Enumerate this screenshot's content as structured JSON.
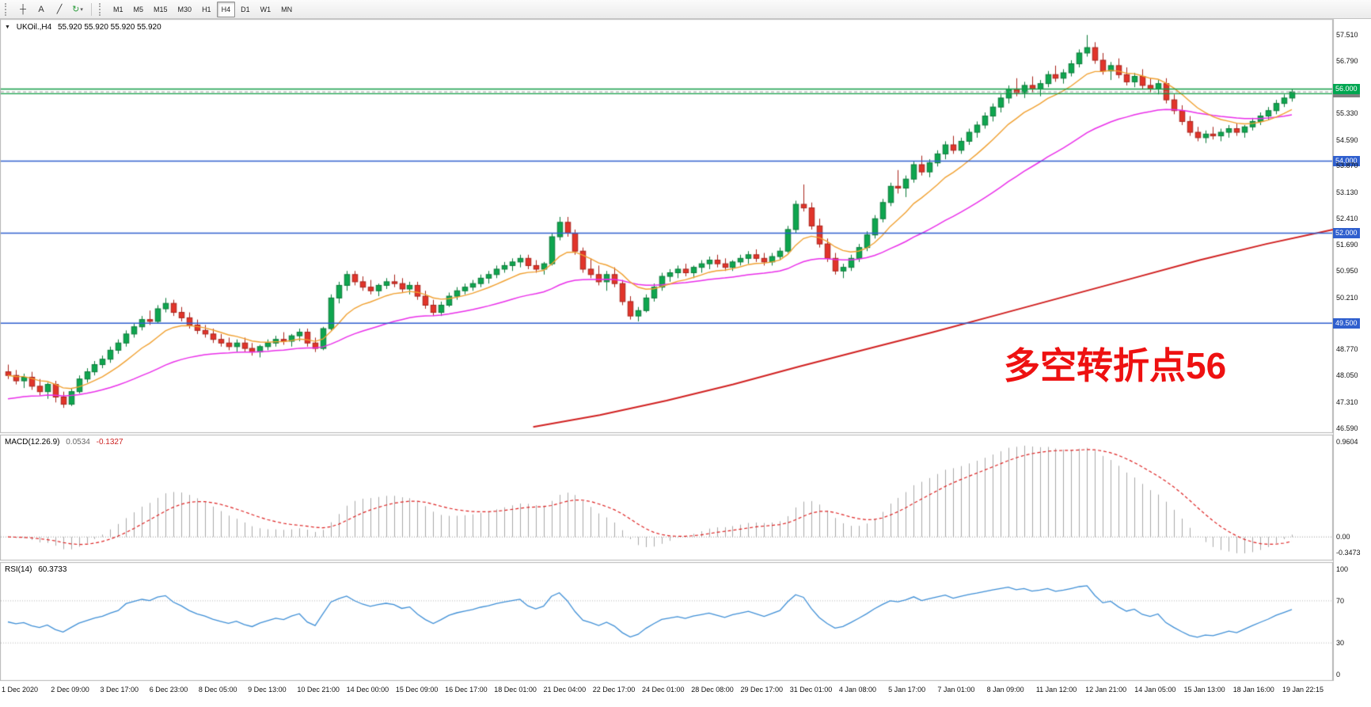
{
  "icons": {
    "collapse": "▼"
  },
  "toolbar": {
    "tools": [
      {
        "name": "crosshair-tool",
        "glyph": "┼"
      },
      {
        "name": "text-tool",
        "glyph": "A"
      },
      {
        "name": "trendline-tool",
        "glyph": "╱"
      },
      {
        "name": "refresh-tool",
        "glyph": "↻",
        "dropdown": "▾",
        "green": true
      }
    ],
    "timeframes": [
      {
        "label": "M1"
      },
      {
        "label": "M5"
      },
      {
        "label": "M15"
      },
      {
        "label": "M30"
      },
      {
        "label": "H1"
      },
      {
        "label": "H4",
        "selected": true
      },
      {
        "label": "D1"
      },
      {
        "label": "W1"
      },
      {
        "label": "MN"
      }
    ]
  },
  "main_chart": {
    "header_symbol": "UKOil.,H4",
    "header_ohlc": "55.920 55.920 55.920 55.920",
    "annotation": {
      "text": "多空转折点56",
      "color": "#ee1111"
    }
  },
  "chart_data": {
    "type": "candlestick",
    "symbol": "UKOil",
    "timeframe": "H4",
    "price_range": [
      46.45,
      57.9
    ],
    "colors": {
      "up": "#0ea64f",
      "up_border": "#0a7a38",
      "down": "#e2342a",
      "down_border": "#a8221a",
      "background": "#ffffff"
    },
    "axis_ticks": [
      57.51,
      56.79,
      55.33,
      54.59,
      53.87,
      53.13,
      52.41,
      51.69,
      50.95,
      50.21,
      48.77,
      48.05,
      47.31,
      46.59
    ],
    "badges": [
      {
        "label": "56.000",
        "price": 56.0,
        "color": "#00a651",
        "z": 5
      },
      {
        "label": "55.920",
        "price": 55.92,
        "color": "#808080",
        "z": 4
      },
      {
        "label": "54.000",
        "price": 54.0,
        "color": "#2f5fce",
        "z": 4
      },
      {
        "label": "52.000",
        "price": 52.0,
        "color": "#2f5fce",
        "z": 4
      },
      {
        "label": "49.500",
        "price": 49.5,
        "color": "#2f5fce",
        "z": 4
      }
    ],
    "hlines": [
      {
        "price": 56.0,
        "color": "#109c46",
        "width": 1.4,
        "dash": []
      },
      {
        "price": 55.87,
        "color": "#109c46",
        "width": 1.2,
        "dash": []
      },
      {
        "price": 55.92,
        "color": "#999999",
        "width": 1,
        "dash": [
          4,
          3
        ]
      },
      {
        "price": 54.0,
        "color": "#2f5fce",
        "width": 1.4,
        "dash": []
      },
      {
        "price": 52.0,
        "color": "#2f5fce",
        "width": 1.4,
        "dash": []
      },
      {
        "price": 49.5,
        "color": "#2f5fce",
        "width": 1.4,
        "dash": []
      }
    ],
    "moving_averages": {
      "fast": {
        "period": 10,
        "color": "#f0a030"
      },
      "medium": {
        "period": 34,
        "color": "#e92ee9"
      },
      "slow": {
        "color": "#d02020",
        "points": [
          [
            0.4,
            46.62
          ],
          [
            0.45,
            46.95
          ],
          [
            0.5,
            47.35
          ],
          [
            0.55,
            47.8
          ],
          [
            0.6,
            48.3
          ],
          [
            0.65,
            48.78
          ],
          [
            0.7,
            49.25
          ],
          [
            0.75,
            49.75
          ],
          [
            0.8,
            50.25
          ],
          [
            0.85,
            50.75
          ],
          [
            0.9,
            51.25
          ],
          [
            0.95,
            51.7
          ],
          [
            1.0,
            52.1
          ]
        ]
      }
    },
    "macd": {
      "label": "MACD(12.26.9)",
      "main_value": "0.0534",
      "signal_value": "-0.1327",
      "fast": 12,
      "slow": 26,
      "signal": 9,
      "axis_labels": [
        "0.9604",
        "0.00",
        "-0.3473"
      ],
      "histogram_color": "#a8a8a8",
      "signal_color": "#dd2222"
    },
    "rsi": {
      "label": "RSI(14)",
      "value": "60.3733",
      "period": 14,
      "axis_labels": [
        "100",
        "70",
        "30",
        "0"
      ],
      "levels": [
        70,
        30
      ],
      "color": "#3f8fd6"
    },
    "time_labels": [
      "1 Dec 2020",
      "2 Dec 09:00",
      "3 Dec 17:00",
      "6 Dec 23:00",
      "8 Dec 05:00",
      "9 Dec 13:00",
      "10 Dec 21:00",
      "14 Dec 00:00",
      "15 Dec 09:00",
      "16 Dec 17:00",
      "18 Dec 01:00",
      "21 Dec 04:00",
      "22 Dec 17:00",
      "24 Dec 01:00",
      "28 Dec 08:00",
      "29 Dec 17:00",
      "31 Dec 01:00",
      "4 Jan 08:00",
      "5 Jan 17:00",
      "7 Jan 01:00",
      "8 Jan 09:00",
      "11 Jan 12:00",
      "12 Jan 21:00",
      "14 Jan 05:00",
      "15 Jan 13:00",
      "18 Jan 16:00",
      "19 Jan 22:15"
    ],
    "ohlc": [
      [
        48.15,
        48.35,
        47.95,
        48.05
      ],
      [
        48.05,
        48.2,
        47.8,
        47.9
      ],
      [
        47.9,
        48.1,
        47.7,
        48.0
      ],
      [
        48.0,
        48.15,
        47.65,
        47.75
      ],
      [
        47.75,
        47.95,
        47.5,
        47.6
      ],
      [
        47.6,
        47.85,
        47.4,
        47.8
      ],
      [
        47.8,
        47.9,
        47.3,
        47.45
      ],
      [
        47.45,
        47.6,
        47.15,
        47.25
      ],
      [
        47.25,
        47.7,
        47.2,
        47.6
      ],
      [
        47.6,
        48.05,
        47.55,
        47.95
      ],
      [
        47.95,
        48.25,
        47.85,
        48.15
      ],
      [
        48.15,
        48.45,
        48.05,
        48.35
      ],
      [
        48.35,
        48.6,
        48.25,
        48.5
      ],
      [
        48.5,
        48.85,
        48.4,
        48.75
      ],
      [
        48.75,
        49.05,
        48.65,
        48.95
      ],
      [
        48.95,
        49.3,
        48.85,
        49.2
      ],
      [
        49.2,
        49.5,
        49.1,
        49.4
      ],
      [
        49.4,
        49.7,
        49.3,
        49.6
      ],
      [
        49.6,
        49.85,
        49.45,
        49.55
      ],
      [
        49.55,
        50.0,
        49.5,
        49.9
      ],
      [
        49.9,
        50.2,
        49.8,
        50.05
      ],
      [
        50.05,
        50.15,
        49.7,
        49.8
      ],
      [
        49.8,
        49.95,
        49.55,
        49.65
      ],
      [
        49.65,
        49.8,
        49.35,
        49.45
      ],
      [
        49.45,
        49.6,
        49.2,
        49.3
      ],
      [
        49.3,
        49.45,
        49.1,
        49.2
      ],
      [
        49.2,
        49.35,
        48.95,
        49.05
      ],
      [
        49.05,
        49.2,
        48.85,
        48.95
      ],
      [
        48.95,
        49.1,
        48.75,
        48.85
      ],
      [
        48.85,
        49.05,
        48.7,
        48.95
      ],
      [
        48.95,
        49.1,
        48.7,
        48.8
      ],
      [
        48.8,
        48.95,
        48.6,
        48.7
      ],
      [
        48.7,
        48.9,
        48.55,
        48.85
      ],
      [
        48.85,
        49.05,
        48.75,
        48.95
      ],
      [
        48.95,
        49.15,
        48.85,
        49.05
      ],
      [
        49.05,
        49.25,
        48.9,
        49.0
      ],
      [
        49.0,
        49.2,
        48.85,
        49.15
      ],
      [
        49.15,
        49.35,
        49.0,
        49.25
      ],
      [
        49.25,
        49.35,
        48.85,
        48.95
      ],
      [
        48.95,
        49.1,
        48.7,
        48.8
      ],
      [
        48.8,
        49.4,
        48.75,
        49.35
      ],
      [
        49.35,
        50.3,
        49.3,
        50.2
      ],
      [
        50.2,
        50.65,
        50.05,
        50.55
      ],
      [
        50.55,
        50.95,
        50.4,
        50.85
      ],
      [
        50.85,
        50.95,
        50.55,
        50.65
      ],
      [
        50.65,
        50.8,
        50.4,
        50.5
      ],
      [
        50.5,
        50.7,
        50.3,
        50.4
      ],
      [
        50.4,
        50.6,
        50.25,
        50.55
      ],
      [
        50.55,
        50.75,
        50.45,
        50.65
      ],
      [
        50.65,
        50.85,
        50.5,
        50.6
      ],
      [
        50.6,
        50.75,
        50.35,
        50.45
      ],
      [
        50.45,
        50.65,
        50.3,
        50.55
      ],
      [
        50.55,
        50.65,
        50.15,
        50.25
      ],
      [
        50.25,
        50.4,
        49.9,
        50.0
      ],
      [
        50.0,
        50.15,
        49.7,
        49.8
      ],
      [
        49.8,
        50.1,
        49.7,
        50.0
      ],
      [
        50.0,
        50.35,
        49.95,
        50.25
      ],
      [
        50.25,
        50.5,
        50.15,
        50.4
      ],
      [
        50.4,
        50.6,
        50.3,
        50.5
      ],
      [
        50.5,
        50.7,
        50.4,
        50.6
      ],
      [
        50.6,
        50.85,
        50.5,
        50.75
      ],
      [
        50.75,
        50.95,
        50.6,
        50.85
      ],
      [
        50.85,
        51.1,
        50.75,
        51.0
      ],
      [
        51.0,
        51.2,
        50.9,
        51.1
      ],
      [
        51.1,
        51.3,
        50.95,
        51.2
      ],
      [
        51.2,
        51.4,
        51.05,
        51.3
      ],
      [
        51.3,
        51.4,
        51.0,
        51.1
      ],
      [
        51.1,
        51.25,
        50.9,
        51.0
      ],
      [
        51.0,
        51.2,
        50.85,
        51.15
      ],
      [
        51.15,
        52.0,
        51.1,
        51.9
      ],
      [
        51.9,
        52.45,
        51.8,
        52.3
      ],
      [
        52.3,
        52.45,
        51.9,
        52.0
      ],
      [
        52.0,
        52.1,
        51.4,
        51.5
      ],
      [
        51.5,
        51.6,
        50.9,
        51.0
      ],
      [
        51.0,
        51.3,
        50.75,
        50.85
      ],
      [
        50.85,
        51.1,
        50.55,
        50.65
      ],
      [
        50.65,
        50.95,
        50.4,
        50.85
      ],
      [
        50.85,
        51.05,
        50.5,
        50.6
      ],
      [
        50.6,
        50.7,
        50.0,
        50.1
      ],
      [
        50.1,
        50.25,
        49.6,
        49.7
      ],
      [
        49.7,
        49.95,
        49.55,
        49.85
      ],
      [
        49.85,
        50.3,
        49.8,
        50.2
      ],
      [
        50.2,
        50.6,
        50.1,
        50.5
      ],
      [
        50.5,
        50.9,
        50.4,
        50.8
      ],
      [
        50.8,
        51.0,
        50.65,
        50.9
      ],
      [
        50.9,
        51.1,
        50.75,
        51.0
      ],
      [
        51.0,
        51.15,
        50.8,
        50.9
      ],
      [
        50.9,
        51.1,
        50.75,
        51.05
      ],
      [
        51.05,
        51.25,
        50.9,
        51.15
      ],
      [
        51.15,
        51.35,
        51.0,
        51.25
      ],
      [
        51.25,
        51.4,
        51.05,
        51.15
      ],
      [
        51.15,
        51.3,
        50.95,
        51.05
      ],
      [
        51.05,
        51.25,
        50.95,
        51.2
      ],
      [
        51.2,
        51.4,
        51.1,
        51.3
      ],
      [
        51.3,
        51.5,
        51.15,
        51.4
      ],
      [
        51.4,
        51.55,
        51.2,
        51.3
      ],
      [
        51.3,
        51.45,
        51.1,
        51.2
      ],
      [
        51.2,
        51.45,
        51.1,
        51.35
      ],
      [
        51.35,
        51.6,
        51.25,
        51.5
      ],
      [
        51.5,
        52.2,
        51.45,
        52.1
      ],
      [
        52.1,
        52.9,
        52.0,
        52.8
      ],
      [
        52.8,
        53.35,
        52.6,
        52.7
      ],
      [
        52.7,
        52.85,
        52.1,
        52.2
      ],
      [
        52.2,
        52.4,
        51.6,
        51.7
      ],
      [
        51.7,
        51.85,
        51.2,
        51.3
      ],
      [
        51.3,
        51.45,
        50.85,
        50.95
      ],
      [
        50.95,
        51.15,
        50.75,
        51.05
      ],
      [
        51.05,
        51.4,
        50.95,
        51.3
      ],
      [
        51.3,
        51.7,
        51.2,
        51.6
      ],
      [
        51.6,
        52.05,
        51.5,
        51.95
      ],
      [
        51.95,
        52.5,
        51.85,
        52.4
      ],
      [
        52.4,
        52.95,
        52.3,
        52.85
      ],
      [
        52.85,
        53.4,
        52.75,
        53.3
      ],
      [
        53.3,
        53.75,
        53.1,
        53.25
      ],
      [
        53.25,
        53.6,
        53.0,
        53.5
      ],
      [
        53.5,
        54.0,
        53.4,
        53.9
      ],
      [
        53.9,
        54.15,
        53.6,
        53.7
      ],
      [
        53.7,
        54.05,
        53.55,
        53.95
      ],
      [
        53.95,
        54.3,
        53.85,
        54.2
      ],
      [
        54.2,
        54.55,
        54.05,
        54.45
      ],
      [
        54.45,
        54.7,
        54.2,
        54.3
      ],
      [
        54.3,
        54.65,
        54.2,
        54.55
      ],
      [
        54.55,
        54.9,
        54.45,
        54.8
      ],
      [
        54.8,
        55.1,
        54.65,
        55.0
      ],
      [
        55.0,
        55.35,
        54.9,
        55.25
      ],
      [
        55.25,
        55.6,
        55.1,
        55.5
      ],
      [
        55.5,
        55.85,
        55.35,
        55.75
      ],
      [
        55.75,
        56.1,
        55.6,
        56.0
      ],
      [
        56.0,
        56.3,
        55.8,
        55.9
      ],
      [
        55.9,
        56.2,
        55.75,
        56.1
      ],
      [
        56.1,
        56.35,
        55.9,
        56.0
      ],
      [
        56.0,
        56.25,
        55.8,
        56.15
      ],
      [
        56.15,
        56.5,
        56.05,
        56.4
      ],
      [
        56.4,
        56.65,
        56.2,
        56.3
      ],
      [
        56.3,
        56.55,
        56.15,
        56.45
      ],
      [
        56.45,
        56.8,
        56.35,
        56.7
      ],
      [
        56.7,
        57.1,
        56.6,
        57.0
      ],
      [
        57.0,
        57.5,
        56.9,
        57.15
      ],
      [
        57.15,
        57.3,
        56.7,
        56.8
      ],
      [
        56.8,
        57.0,
        56.4,
        56.5
      ],
      [
        56.5,
        56.75,
        56.25,
        56.65
      ],
      [
        56.65,
        56.85,
        56.3,
        56.4
      ],
      [
        56.4,
        56.6,
        56.1,
        56.2
      ],
      [
        56.2,
        56.45,
        56.05,
        56.35
      ],
      [
        56.35,
        56.55,
        56.0,
        56.1
      ],
      [
        56.1,
        56.3,
        55.9,
        56.0
      ],
      [
        56.0,
        56.25,
        55.85,
        56.15
      ],
      [
        56.15,
        56.3,
        55.6,
        55.7
      ],
      [
        55.7,
        55.85,
        55.3,
        55.4
      ],
      [
        55.4,
        55.55,
        55.0,
        55.1
      ],
      [
        55.1,
        55.25,
        54.7,
        54.8
      ],
      [
        54.8,
        54.95,
        54.55,
        54.65
      ],
      [
        54.65,
        54.85,
        54.5,
        54.75
      ],
      [
        54.75,
        54.95,
        54.6,
        54.7
      ],
      [
        54.7,
        54.9,
        54.55,
        54.8
      ],
      [
        54.8,
        55.0,
        54.65,
        54.9
      ],
      [
        54.9,
        55.05,
        54.7,
        54.8
      ],
      [
        54.8,
        55.0,
        54.65,
        54.95
      ],
      [
        54.95,
        55.2,
        54.85,
        55.1
      ],
      [
        55.1,
        55.35,
        55.0,
        55.25
      ],
      [
        55.25,
        55.5,
        55.15,
        55.4
      ],
      [
        55.4,
        55.7,
        55.3,
        55.6
      ],
      [
        55.6,
        55.85,
        55.5,
        55.75
      ],
      [
        55.75,
        56.0,
        55.65,
        55.92
      ]
    ]
  }
}
